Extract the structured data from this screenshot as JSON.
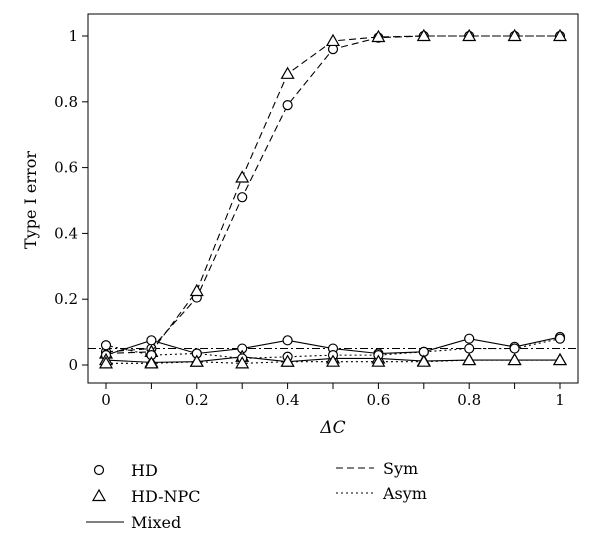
{
  "chart_data": {
    "type": "line",
    "xlabel": "ΔC",
    "ylabel": "Type I error",
    "xlim": [
      0,
      1
    ],
    "ylim": [
      0,
      1
    ],
    "x_ticks": [
      0,
      0.1,
      0.2,
      0.3,
      0.4,
      0.5,
      0.6,
      0.7,
      0.8,
      0.9,
      1
    ],
    "x_tick_labels": [
      "0",
      "",
      "0.2",
      "",
      "0.4",
      "",
      "0.6",
      "",
      "0.8",
      "",
      "1"
    ],
    "y_ticks": [
      0,
      0.2,
      0.4,
      0.6,
      0.8,
      1
    ],
    "y_tick_labels": [
      "0",
      "0.2",
      "0.4",
      "0.6",
      "0.8",
      "1"
    ],
    "reference_line": {
      "y": 0.05,
      "style": "dashdot"
    },
    "grid": false,
    "legend": {
      "placement": "bottom",
      "markers": [
        {
          "label": "HD",
          "marker": "circle"
        },
        {
          "label": "HD-NPC",
          "marker": "triangle"
        }
      ],
      "linestyles": [
        {
          "label": "Mixed",
          "style": "solid"
        },
        {
          "label": "Sym",
          "style": "dashed"
        },
        {
          "label": "Asym",
          "style": "dotted"
        }
      ]
    },
    "x": [
      0,
      0.1,
      0.2,
      0.3,
      0.4,
      0.5,
      0.6,
      0.7,
      0.8,
      0.9,
      1
    ],
    "series": [
      {
        "method": "HD",
        "design": "Sym",
        "marker": "circle",
        "style": "dashed",
        "values": [
          0.04,
          0.05,
          0.205,
          0.51,
          0.79,
          0.96,
          0.995,
          1.0,
          1.0,
          1.0,
          1.0
        ]
      },
      {
        "method": "HD-NPC",
        "design": "Sym",
        "marker": "triangle",
        "style": "dashed",
        "values": [
          0.035,
          0.04,
          0.225,
          0.57,
          0.885,
          0.985,
          0.997,
          1.0,
          1.0,
          1.0,
          1.0
        ]
      },
      {
        "method": "HD",
        "design": "Mixed",
        "marker": "circle",
        "style": "solid",
        "values": [
          0.03,
          0.075,
          0.035,
          0.05,
          0.075,
          0.05,
          0.035,
          0.04,
          0.08,
          0.055,
          0.085
        ]
      },
      {
        "method": "HD-NPC",
        "design": "Mixed",
        "marker": "triangle",
        "style": "solid",
        "values": [
          0.015,
          0.008,
          0.01,
          0.025,
          0.01,
          0.02,
          0.02,
          0.012,
          0.015,
          0.015,
          0.015
        ]
      },
      {
        "method": "HD",
        "design": "Asym",
        "marker": "circle",
        "style": "dotted",
        "values": [
          0.06,
          0.03,
          0.035,
          0.02,
          0.025,
          0.03,
          0.03,
          0.04,
          0.05,
          0.05,
          0.08
        ]
      },
      {
        "method": "HD-NPC",
        "design": "Asym",
        "marker": "triangle",
        "style": "dotted",
        "values": [
          0.005,
          0.005,
          0.01,
          0.005,
          0.01,
          0.01,
          0.01,
          0.01,
          0.015,
          0.015,
          0.015
        ]
      }
    ]
  }
}
